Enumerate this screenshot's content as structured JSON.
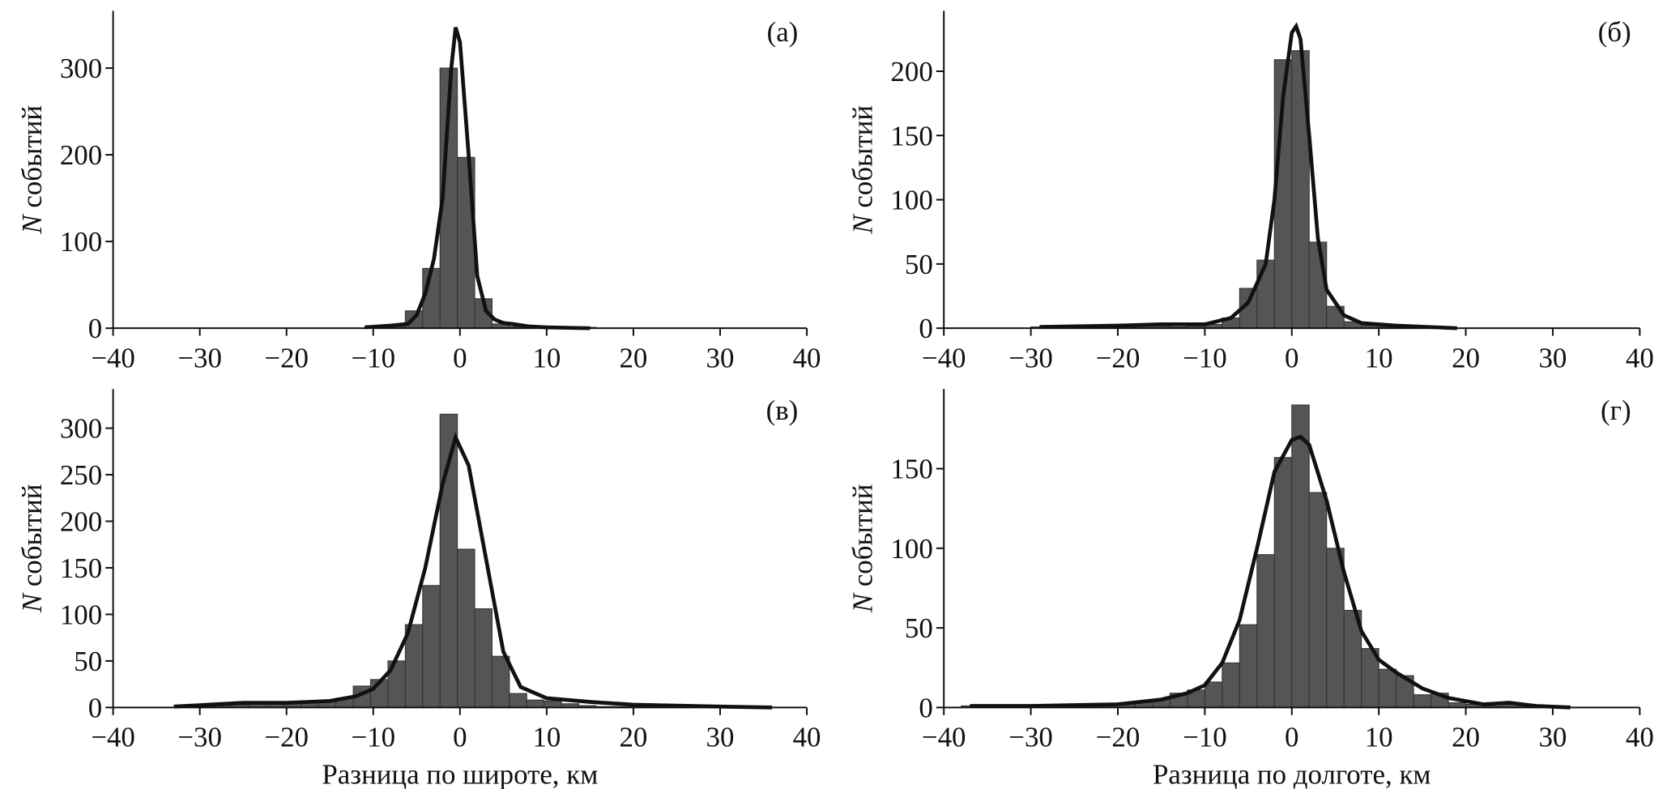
{
  "chart_data": [
    {
      "type": "histogram",
      "panel_label": "(a)",
      "ylabel_var": "N",
      "ylabel": "событий",
      "color": "#555555",
      "bins": [
        -10.3,
        -8.3,
        -6.3,
        -4.3,
        -2.3,
        -0.3,
        1.7,
        3.7,
        5.7,
        7.7,
        9.7,
        11.7,
        13.7,
        15.7
      ],
      "counts": [
        1,
        2,
        20,
        69,
        300,
        197,
        34,
        5,
        2,
        1,
        0,
        0,
        1
      ],
      "kde": {
        "x": [
          -11,
          -8,
          -6,
          -5,
          -4,
          -3,
          -2,
          -1,
          -0.5,
          0,
          1,
          2,
          3,
          4,
          5,
          6,
          8,
          10,
          15
        ],
        "values": [
          1,
          3,
          5,
          15,
          40,
          80,
          150,
          300,
          347,
          330,
          200,
          60,
          20,
          10,
          6,
          5,
          2,
          1,
          0
        ]
      },
      "xlim": [
        -40,
        40
      ],
      "ylim": [
        0,
        366
      ],
      "xticks": [
        {
          "value": -40,
          "label": "−40"
        },
        {
          "value": -30,
          "label": "−30"
        },
        {
          "value": -20,
          "label": "−20"
        },
        {
          "value": -10,
          "label": "−10"
        },
        0,
        10,
        20,
        30,
        40
      ],
      "yticks": [
        0,
        100,
        200,
        300
      ]
    },
    {
      "type": "histogram",
      "panel_label": "(б)",
      "ylabel_var": "N",
      "ylabel": "событий",
      "color": "#555555",
      "bins": [
        -30,
        -28,
        -26,
        -24,
        -22,
        -20,
        -18,
        -16,
        -14,
        -12,
        -10,
        -8,
        -6,
        -4,
        -2,
        0,
        2,
        4,
        6,
        8,
        10,
        12,
        14,
        16,
        18,
        20
      ],
      "counts": [
        1,
        1,
        1,
        1,
        1,
        1,
        2,
        2,
        1,
        2,
        3,
        8,
        31,
        53,
        209,
        216,
        67,
        17,
        5,
        2,
        1,
        1,
        0,
        1,
        0
      ],
      "kde": {
        "x": [
          -29,
          -20,
          -15,
          -10,
          -7,
          -5,
          -3,
          -2,
          -1,
          0,
          0.5,
          1,
          2,
          3,
          4,
          6,
          8,
          12,
          19
        ],
        "values": [
          1,
          2,
          3,
          3,
          8,
          20,
          50,
          100,
          180,
          230,
          235,
          225,
          150,
          70,
          30,
          10,
          4,
          2,
          0
        ]
      },
      "xlim": [
        -40,
        40
      ],
      "ylim": [
        0,
        247
      ],
      "xticks": [
        {
          "value": -40,
          "label": "−40"
        },
        {
          "value": -30,
          "label": "−30"
        },
        {
          "value": -20,
          "label": "−20"
        },
        {
          "value": -10,
          "label": "−10"
        },
        0,
        10,
        20,
        30,
        40
      ],
      "yticks": [
        0,
        50,
        100,
        150,
        200
      ]
    },
    {
      "type": "histogram",
      "panel_label": "(в)",
      "ylabel_var": "N",
      "ylabel": "событий",
      "xlabel": "Разница по широте, км",
      "color": "#555555",
      "bins": [
        -32.3,
        -30.3,
        -28.3,
        -26.3,
        -24.3,
        -22.3,
        -20.3,
        -18.3,
        -16.3,
        -14.3,
        -12.3,
        -10.3,
        -8.3,
        -6.3,
        -4.3,
        -2.3,
        -0.3,
        1.7,
        3.7,
        5.7,
        7.7,
        9.7,
        11.7,
        13.7,
        15.7,
        17.7,
        19.7,
        21.7,
        23.7,
        25.7,
        27.7,
        29.7,
        31.7,
        33.7,
        35.7
      ],
      "counts": [
        1,
        1,
        2,
        3,
        4,
        4,
        5,
        5,
        6,
        10,
        23,
        30,
        50,
        89,
        131,
        315,
        170,
        106,
        55,
        15,
        8,
        7,
        4,
        2,
        1,
        1,
        1,
        0,
        0,
        0,
        1,
        0,
        0,
        1
      ],
      "kde": {
        "x": [
          -33,
          -25,
          -20,
          -15,
          -12,
          -10,
          -8,
          -6,
          -4,
          -2,
          -0.5,
          1,
          3,
          5,
          7,
          10,
          15,
          20,
          30,
          36
        ],
        "values": [
          1,
          5,
          5,
          7,
          12,
          20,
          40,
          80,
          150,
          240,
          290,
          260,
          160,
          60,
          22,
          10,
          6,
          3,
          1,
          0
        ]
      },
      "xlim": [
        -40,
        40
      ],
      "ylim": [
        0,
        342
      ],
      "xticks": [
        {
          "value": -40,
          "label": "−40"
        },
        {
          "value": -30,
          "label": "−30"
        },
        {
          "value": -20,
          "label": "−20"
        },
        {
          "value": -10,
          "label": "−10"
        },
        0,
        10,
        20,
        30,
        40
      ],
      "yticks": [
        0,
        50,
        100,
        150,
        200,
        250,
        300
      ]
    },
    {
      "type": "histogram",
      "panel_label": "(г)",
      "ylabel_var": "N",
      "ylabel": "событий",
      "xlabel": "Разница по долготе, км",
      "color": "#555555",
      "bins": [
        -38,
        -36,
        -34,
        -32,
        -30,
        -28,
        -26,
        -24,
        -22,
        -20,
        -18,
        -16,
        -14,
        -12,
        -10,
        -8,
        -6,
        -4,
        -2,
        0,
        2,
        4,
        6,
        8,
        10,
        12,
        14,
        16,
        18,
        20,
        22,
        24,
        26,
        28,
        30,
        32
      ],
      "counts": [
        1,
        1,
        0,
        0,
        1,
        0,
        1,
        1,
        2,
        3,
        4,
        5,
        9,
        11,
        16,
        28,
        52,
        96,
        157,
        190,
        135,
        100,
        61,
        37,
        24,
        20,
        8,
        9,
        3,
        2,
        1,
        2,
        2,
        1,
        1
      ],
      "kde": {
        "x": [
          -37,
          -30,
          -20,
          -15,
          -12,
          -10,
          -8,
          -6,
          -4,
          -2,
          0,
          1,
          2,
          4,
          6,
          8,
          10,
          12,
          15,
          18,
          22,
          25,
          28,
          32
        ],
        "values": [
          1,
          1,
          2,
          5,
          9,
          14,
          28,
          55,
          100,
          148,
          168,
          170,
          165,
          130,
          85,
          48,
          30,
          22,
          12,
          6,
          2,
          3,
          1,
          0
        ]
      },
      "xlim": [
        -40,
        40
      ],
      "ylim": [
        0,
        200
      ],
      "xticks": [
        {
          "value": -40,
          "label": "−40"
        },
        {
          "value": -30,
          "label": "−30"
        },
        {
          "value": -20,
          "label": "−20"
        },
        {
          "value": -10,
          "label": "−10"
        },
        0,
        10,
        20,
        30,
        40
      ],
      "yticks": [
        0,
        50,
        100,
        150
      ]
    }
  ]
}
